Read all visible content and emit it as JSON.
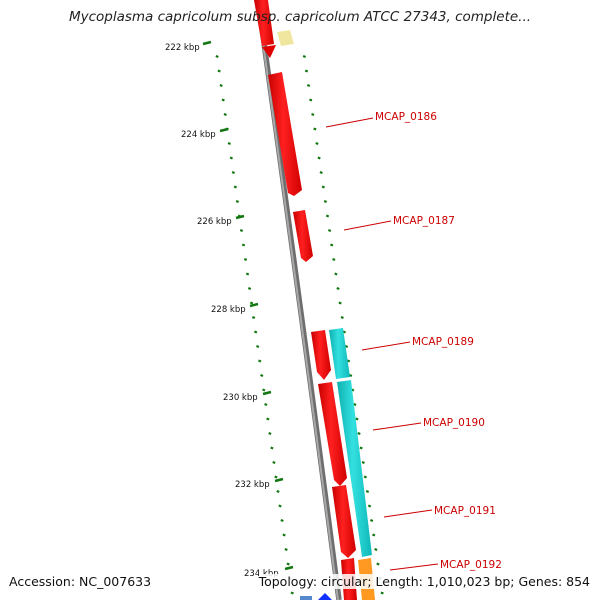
{
  "title": "Mycoplasma capricolum subsp. capricolum ATCC 27343, complete...",
  "accession": "Accession: NC_007633",
  "summary": "Topology: circular; Length: 1,010,023 bp; Genes: 854",
  "ruler": {
    "tick_labels": [
      "222 kbp",
      "224 kbp",
      "226 kbp",
      "228 kbp",
      "230 kbp",
      "232 kbp",
      "234 kbp"
    ]
  },
  "gene_labels": [
    "MCAP_0186",
    "MCAP_0187",
    "MCAP_0189",
    "MCAP_0190",
    "MCAP_0191",
    "MCAP_0192"
  ],
  "colors": {
    "gene_red": "#ff0000",
    "gene_cyan": "#19d3d3",
    "gene_yellow": "#f0e6a0",
    "gene_orange": "#ff9922",
    "backbone": "#8c8c8c",
    "tick_green": "#117711",
    "label_red": "#cc0000"
  }
}
